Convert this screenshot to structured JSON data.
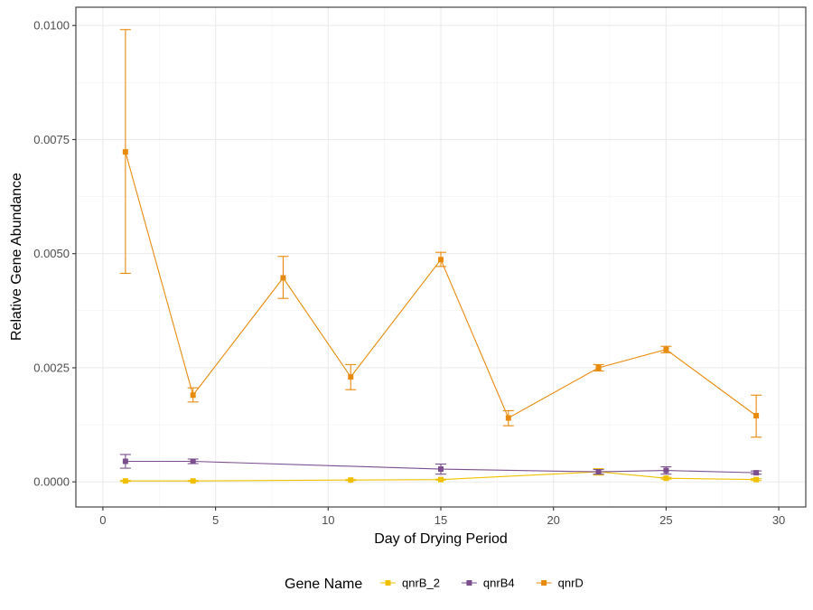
{
  "chart_data": {
    "type": "line",
    "title": "",
    "xlabel": "Day of Drying Period",
    "ylabel": "Relative Gene Abundance",
    "xlim": [
      -1.2,
      31.2
    ],
    "ylim": [
      -0.00055,
      0.0104
    ],
    "x_ticks": [
      0,
      5,
      10,
      15,
      20,
      25,
      30
    ],
    "x_tick_labels": [
      "0",
      "5",
      "10",
      "15",
      "20",
      "25",
      "30"
    ],
    "y_ticks": [
      0,
      0.0025,
      0.005,
      0.0075,
      0.01
    ],
    "y_tick_labels": [
      "0.0000",
      "0.0025",
      "0.0050",
      "0.0075",
      "0.0100"
    ],
    "grid": true,
    "legend": {
      "title": "Gene Name",
      "placement": "bottom"
    },
    "x": [
      1,
      4,
      8,
      11,
      15,
      18,
      22,
      25,
      29
    ],
    "series": [
      {
        "name": "qnrB_2",
        "color": "#f0c000",
        "x": [
          1,
          4,
          11,
          15,
          22,
          25,
          29
        ],
        "y": [
          2e-05,
          2e-05,
          4e-05,
          5e-05,
          0.00022,
          8e-05,
          5e-05
        ],
        "err_low": [
          1e-05,
          1e-05,
          3e-05,
          4e-05,
          0.00015,
          6e-05,
          3e-05
        ],
        "err_high": [
          3e-05,
          3e-05,
          5e-05,
          6e-05,
          0.00029,
          0.0001,
          7e-05
        ]
      },
      {
        "name": "qnrB4",
        "color": "#7b4f8e",
        "x": [
          1,
          4,
          15,
          22,
          25,
          29
        ],
        "y": [
          0.00045,
          0.00045,
          0.00028,
          0.00022,
          0.00025,
          0.0002
        ],
        "err_low": [
          0.0003,
          0.0004,
          0.00017,
          0.00017,
          0.00017,
          0.00017
        ],
        "err_high": [
          0.0006,
          0.0005,
          0.00039,
          0.00027,
          0.00033,
          0.00024
        ]
      },
      {
        "name": "qnrD",
        "color": "#e88a0c",
        "x": [
          1,
          4,
          8,
          11,
          15,
          18,
          22,
          25,
          29
        ],
        "y": [
          0.00723,
          0.0019,
          0.00447,
          0.0023,
          0.00487,
          0.0014,
          0.0025,
          0.0029,
          0.00145
        ],
        "err_low": [
          0.00457,
          0.00175,
          0.00402,
          0.00202,
          0.00472,
          0.00123,
          0.00243,
          0.00283,
          0.00098
        ],
        "err_high": [
          0.00991,
          0.00206,
          0.00494,
          0.00257,
          0.00503,
          0.00156,
          0.00257,
          0.00297,
          0.0019
        ]
      }
    ]
  }
}
